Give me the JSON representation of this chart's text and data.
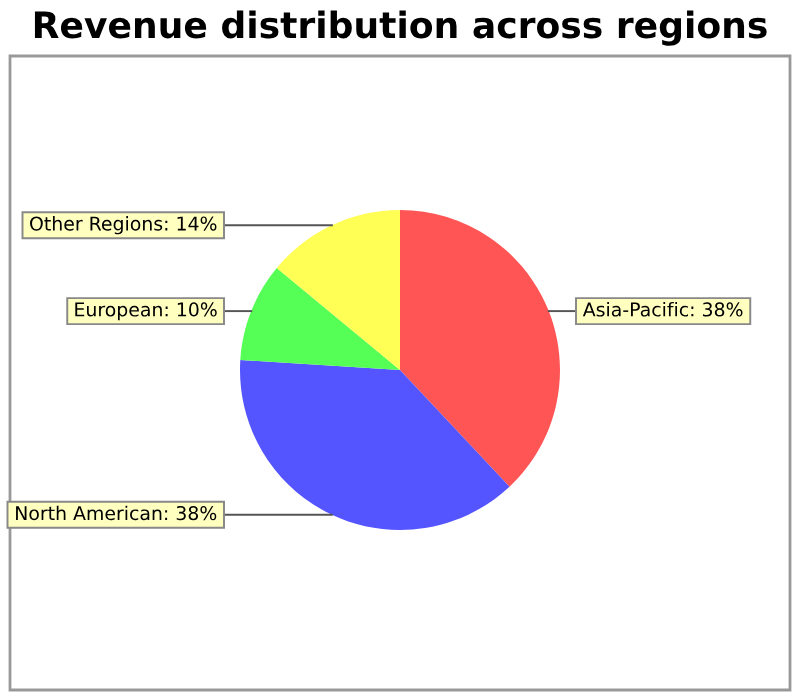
{
  "chart_data": {
    "type": "pie",
    "title": "Revenue distribution across regions",
    "categories": [
      "Asia-Pacific",
      "North American",
      "European",
      "Other Regions"
    ],
    "values": [
      38,
      38,
      10,
      14
    ],
    "value_labels": [
      "38%",
      "38%",
      "10%",
      "14%"
    ],
    "colors": [
      "#ff5555",
      "#5555ff",
      "#55ff55",
      "#ffff55"
    ],
    "legend": false
  }
}
